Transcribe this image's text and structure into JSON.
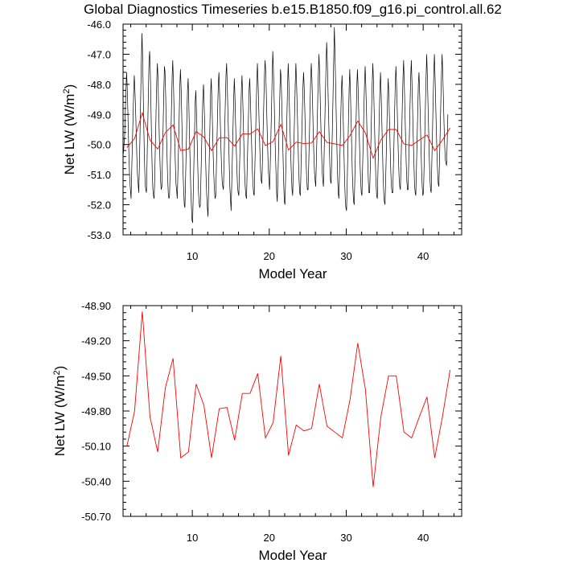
{
  "title": "Global Diagnostics Timeseries b.e15.B1850.f09_g16.pi_control.all.62",
  "colors": {
    "monthly": "#000000",
    "annual": "#ff0000",
    "frame": "#000000"
  },
  "chart_data": [
    {
      "type": "line",
      "title": "Global Diagnostics Timeseries b.e15.B1850.f09_g16.pi_control.all.62",
      "xlabel": "Model Year",
      "ylabel_main": "Net LW (W/m",
      "ylabel_sup": "2",
      "ylabel_end": ")",
      "xlim": [
        1,
        45
      ],
      "ylim": [
        -53.0,
        -46.0
      ],
      "xticks": [
        10,
        20,
        30,
        40
      ],
      "xtick_labels": [
        "10",
        "20",
        "30",
        "40"
      ],
      "yticks": [
        -53.0,
        -52.0,
        -51.0,
        -50.0,
        -49.0,
        -48.0,
        -47.0,
        -46.0
      ],
      "ytick_labels": [
        "-53.0",
        "-52.0",
        "-51.0",
        "-50.0",
        "-49.0",
        "-48.0",
        "-47.0",
        "-46.0"
      ],
      "grid": false,
      "series": [
        {
          "style": "monthly",
          "color": "#000000",
          "x0": 1.0417,
          "dx": 0.08333,
          "values": [
            -50.3,
            -50.0,
            -49.7,
            -48.9,
            -48.2,
            -47.6,
            -48.1,
            -48.9,
            -49.8,
            -50.6,
            -51.2,
            -51.5,
            -51.8,
            -50.9,
            -50.0,
            -49.2,
            -48.3,
            -47.7,
            -48.2,
            -48.8,
            -49.6,
            -50.4,
            -51.0,
            -51.3,
            -51.6,
            -50.7,
            -49.6,
            -48.4,
            -47.3,
            -46.3,
            -47.1,
            -48.3,
            -49.6,
            -50.6,
            -51.3,
            -51.5,
            -51.6,
            -50.5,
            -49.4,
            -48.3,
            -47.2,
            -46.9,
            -47.6,
            -48.7,
            -49.9,
            -50.9,
            -51.5,
            -51.7,
            -51.8,
            -51.0,
            -49.9,
            -48.9,
            -47.9,
            -47.3,
            -47.8,
            -48.8,
            -49.7,
            -50.5,
            -51.2,
            -51.5,
            -51.4,
            -50.4,
            -49.4,
            -48.3,
            -47.4,
            -47.6,
            -48.4,
            -49.4,
            -50.3,
            -51.1,
            -51.6,
            -51.8,
            -51.7,
            -50.8,
            -49.9,
            -48.8,
            -47.8,
            -47.2,
            -47.9,
            -48.8,
            -49.8,
            -50.6,
            -51.3,
            -51.5,
            -51.8,
            -51.0,
            -50.1,
            -49.1,
            -48.1,
            -47.5,
            -48.1,
            -49.0,
            -50.0,
            -50.9,
            -51.5,
            -52.0,
            -52.1,
            -51.1,
            -50.2,
            -49.1,
            -48.2,
            -47.8,
            -48.6,
            -49.6,
            -50.5,
            -51.4,
            -52.0,
            -52.5,
            -52.6,
            -51.6,
            -50.6,
            -49.6,
            -48.6,
            -48.2,
            -48.9,
            -49.8,
            -50.7,
            -51.5,
            -51.9,
            -52.1,
            -52.0,
            -51.1,
            -50.1,
            -49.2,
            -48.4,
            -48.0,
            -48.7,
            -49.5,
            -50.3,
            -51.1,
            -51.7,
            -52.1,
            -52.4,
            -51.4,
            -50.4,
            -49.3,
            -48.3,
            -47.8,
            -48.5,
            -49.4,
            -50.3,
            -51.0,
            -51.5,
            -51.8,
            -51.7,
            -50.8,
            -49.8,
            -48.9,
            -48.0,
            -47.6,
            -48.3,
            -49.1,
            -50.0,
            -50.7,
            -51.2,
            -51.4,
            -51.5,
            -50.6,
            -49.5,
            -48.6,
            -47.7,
            -47.3,
            -48.0,
            -48.9,
            -49.7,
            -50.6,
            -51.4,
            -51.8,
            -52.2,
            -51.3,
            -50.4,
            -49.4,
            -48.5,
            -47.8,
            -48.4,
            -49.3,
            -50.1,
            -50.8,
            -51.4,
            -51.6,
            -51.7,
            -50.9,
            -50.0,
            -49.1,
            -48.2,
            -47.7,
            -48.4,
            -49.2,
            -50.1,
            -50.9,
            -51.4,
            -51.7,
            -51.8,
            -50.9,
            -50.0,
            -49.1,
            -48.2,
            -47.8,
            -48.4,
            -49.2,
            -50.0,
            -50.8,
            -51.3,
            -51.6,
            -51.7,
            -50.8,
            -49.9,
            -48.9,
            -48.0,
            -47.3,
            -47.9,
            -48.7,
            -49.5,
            -50.3,
            -50.9,
            -51.2,
            -51.3,
            -50.4,
            -49.5,
            -48.6,
            -47.7,
            -47.2,
            -47.6,
            -48.4,
            -49.3,
            -50.1,
            -50.8,
            -51.2,
            -51.5,
            -50.7,
            -49.8,
            -48.8,
            -47.8,
            -46.9,
            -47.5,
            -48.4,
            -49.3,
            -50.2,
            -50.9,
            -51.6,
            -51.9,
            -51.1,
            -50.2,
            -49.2,
            -48.3,
            -47.5,
            -47.8,
            -48.6,
            -49.5,
            -50.4,
            -51.3,
            -51.9,
            -52.0,
            -51.1,
            -50.1,
            -49.1,
            -48.1,
            -47.3,
            -47.9,
            -48.8,
            -49.6,
            -50.4,
            -51.0,
            -51.5,
            -51.7,
            -50.8,
            -49.9,
            -49.0,
            -48.0,
            -47.3,
            -47.9,
            -48.7,
            -49.6,
            -50.5,
            -51.2,
            -51.6,
            -51.7,
            -50.8,
            -49.9,
            -49.0,
            -48.1,
            -47.6,
            -48.1,
            -48.9,
            -49.8,
            -50.6,
            -51.2,
            -51.5,
            -51.5,
            -50.7,
            -49.8,
            -48.8,
            -47.9,
            -47.3,
            -47.8,
            -48.6,
            -49.5,
            -50.3,
            -50.9,
            -51.2,
            -51.4,
            -50.5,
            -49.6,
            -48.6,
            -47.7,
            -47.0,
            -47.6,
            -48.5,
            -49.4,
            -50.2,
            -50.9,
            -51.2,
            -51.4,
            -50.4,
            -49.4,
            -48.4,
            -47.4,
            -46.6,
            -47.2,
            -48.1,
            -49.0,
            -49.9,
            -50.7,
            -51.2,
            -51.3,
            -50.4,
            -49.4,
            -48.3,
            -47.2,
            -46.1,
            -47.0,
            -48.0,
            -49.1,
            -50.1,
            -51.0,
            -51.6,
            -51.8,
            -51.0,
            -50.1,
            -49.1,
            -48.2,
            -47.7,
            -48.4,
            -49.3,
            -50.3,
            -51.2,
            -51.8,
            -52.1,
            -52.2,
            -51.3,
            -50.3,
            -49.2,
            -48.2,
            -47.5,
            -48.2,
            -49.1,
            -50.0,
            -50.9,
            -51.5,
            -51.9,
            -52.0,
            -51.1,
            -50.1,
            -49.1,
            -48.1,
            -47.5,
            -48.1,
            -48.9,
            -49.8,
            -50.6,
            -51.2,
            -51.6,
            -51.7,
            -50.8,
            -49.9,
            -48.9,
            -48.0,
            -47.4,
            -48.0,
            -48.8,
            -49.7,
            -50.5,
            -51.2,
            -51.6,
            -51.6,
            -50.8,
            -49.9,
            -48.9,
            -48.0,
            -47.3,
            -47.9,
            -48.8,
            -49.7,
            -50.6,
            -51.3,
            -51.7,
            -51.8,
            -50.9,
            -50.0,
            -49.1,
            -48.2,
            -47.6,
            -48.3,
            -49.2,
            -50.1,
            -51.0,
            -51.6,
            -51.9,
            -52.0,
            -51.2,
            -50.3,
            -49.3,
            -48.4,
            -47.8,
            -48.4,
            -49.2,
            -50.1,
            -50.9,
            -51.4,
            -51.6,
            -51.6,
            -50.8,
            -49.9,
            -48.9,
            -48.0,
            -47.4,
            -48.0,
            -48.8,
            -49.7,
            -50.5,
            -51.1,
            -51.4,
            -51.5,
            -50.6,
            -49.7,
            -48.7,
            -47.8,
            -47.2,
            -47.9,
            -48.8,
            -49.7,
            -50.6,
            -51.2,
            -51.5,
            -51.5,
            -50.6,
            -49.7,
            -48.7,
            -47.8,
            -47.2,
            -47.9,
            -48.8,
            -49.7,
            -50.6,
            -51.3,
            -51.6,
            -51.7,
            -50.8,
            -49.9,
            -48.9,
            -48.0,
            -47.6,
            -48.3,
            -49.1,
            -50.0,
            -50.8,
            -51.4,
            -51.7,
            -51.6,
            -50.7,
            -49.7,
            -48.7,
            -47.8,
            -47.0,
            -47.7,
            -48.6,
            -49.5,
            -50.4,
            -51.1,
            -51.5,
            -51.6,
            -50.6,
            -49.6,
            -48.6,
            -47.7,
            -47.0,
            -47.7,
            -48.6,
            -49.5,
            -50.3,
            -50.9,
            -51.3,
            -51.4,
            -50.5,
            -49.6,
            -48.6,
            -47.7,
            -47.0,
            -47.6,
            -48.4,
            -49.3,
            -50.0,
            -50.5,
            -50.6,
            -50.7,
            -49.9,
            -49.0
          ]
        },
        {
          "style": "annual",
          "color": "#ff0000",
          "x": [
            1.5,
            2.5,
            3.5,
            4.5,
            5.5,
            6.5,
            7.5,
            8.5,
            9.5,
            10.5,
            11.5,
            12.5,
            13.5,
            14.5,
            15.5,
            16.5,
            17.5,
            18.5,
            19.5,
            20.5,
            21.5,
            22.5,
            23.5,
            24.5,
            25.5,
            26.5,
            27.5,
            28.5,
            29.5,
            30.5,
            31.5,
            32.5,
            33.5,
            34.5,
            35.5,
            36.5,
            37.5,
            38.5,
            39.5,
            40.5,
            41.5,
            42.5,
            43.5
          ],
          "values": [
            -50.1,
            -49.8,
            -48.95,
            -49.85,
            -50.15,
            -49.6,
            -49.35,
            -50.2,
            -50.15,
            -49.57,
            -49.75,
            -50.2,
            -49.78,
            -49.77,
            -50.05,
            -49.65,
            -49.65,
            -49.48,
            -50.03,
            -49.9,
            -49.33,
            -50.18,
            -49.92,
            -49.97,
            -49.95,
            -49.57,
            -49.93,
            -49.98,
            -50.03,
            -49.7,
            -49.22,
            -49.62,
            -50.45,
            -49.85,
            -49.5,
            -49.5,
            -49.98,
            -50.03,
            -49.85,
            -49.68,
            -50.2,
            -49.85,
            -49.45
          ]
        }
      ]
    },
    {
      "type": "line",
      "xlabel": "Model Year",
      "ylabel_main": "Net LW (W/m",
      "ylabel_sup": "2",
      "ylabel_end": ")",
      "xlim": [
        1,
        45
      ],
      "ylim": [
        -50.7,
        -48.9
      ],
      "xticks": [
        10,
        20,
        30,
        40
      ],
      "xtick_labels": [
        "10",
        "20",
        "30",
        "40"
      ],
      "yticks": [
        -50.7,
        -50.4,
        -50.1,
        -49.8,
        -49.5,
        -49.2,
        -48.9
      ],
      "ytick_labels": [
        "-50.70",
        "-50.40",
        "-50.10",
        "-49.80",
        "-49.50",
        "-49.20",
        "-48.90"
      ],
      "grid": false,
      "series": [
        {
          "style": "annual",
          "color": "#ff0000",
          "x": [
            1.5,
            2.5,
            3.5,
            4.5,
            5.5,
            6.5,
            7.5,
            8.5,
            9.5,
            10.5,
            11.5,
            12.5,
            13.5,
            14.5,
            15.5,
            16.5,
            17.5,
            18.5,
            19.5,
            20.5,
            21.5,
            22.5,
            23.5,
            24.5,
            25.5,
            26.5,
            27.5,
            28.5,
            29.5,
            30.5,
            31.5,
            32.5,
            33.5,
            34.5,
            35.5,
            36.5,
            37.5,
            38.5,
            39.5,
            40.5,
            41.5,
            42.5,
            43.5
          ],
          "values": [
            -50.1,
            -49.8,
            -48.95,
            -49.85,
            -50.15,
            -49.6,
            -49.35,
            -50.2,
            -50.15,
            -49.57,
            -49.75,
            -50.2,
            -49.78,
            -49.77,
            -50.05,
            -49.65,
            -49.65,
            -49.48,
            -50.03,
            -49.9,
            -49.33,
            -50.18,
            -49.92,
            -49.97,
            -49.95,
            -49.57,
            -49.93,
            -49.98,
            -50.03,
            -49.7,
            -49.22,
            -49.62,
            -50.45,
            -49.85,
            -49.5,
            -49.5,
            -49.98,
            -50.03,
            -49.85,
            -49.68,
            -50.2,
            -49.85,
            -49.45
          ]
        }
      ]
    }
  ]
}
